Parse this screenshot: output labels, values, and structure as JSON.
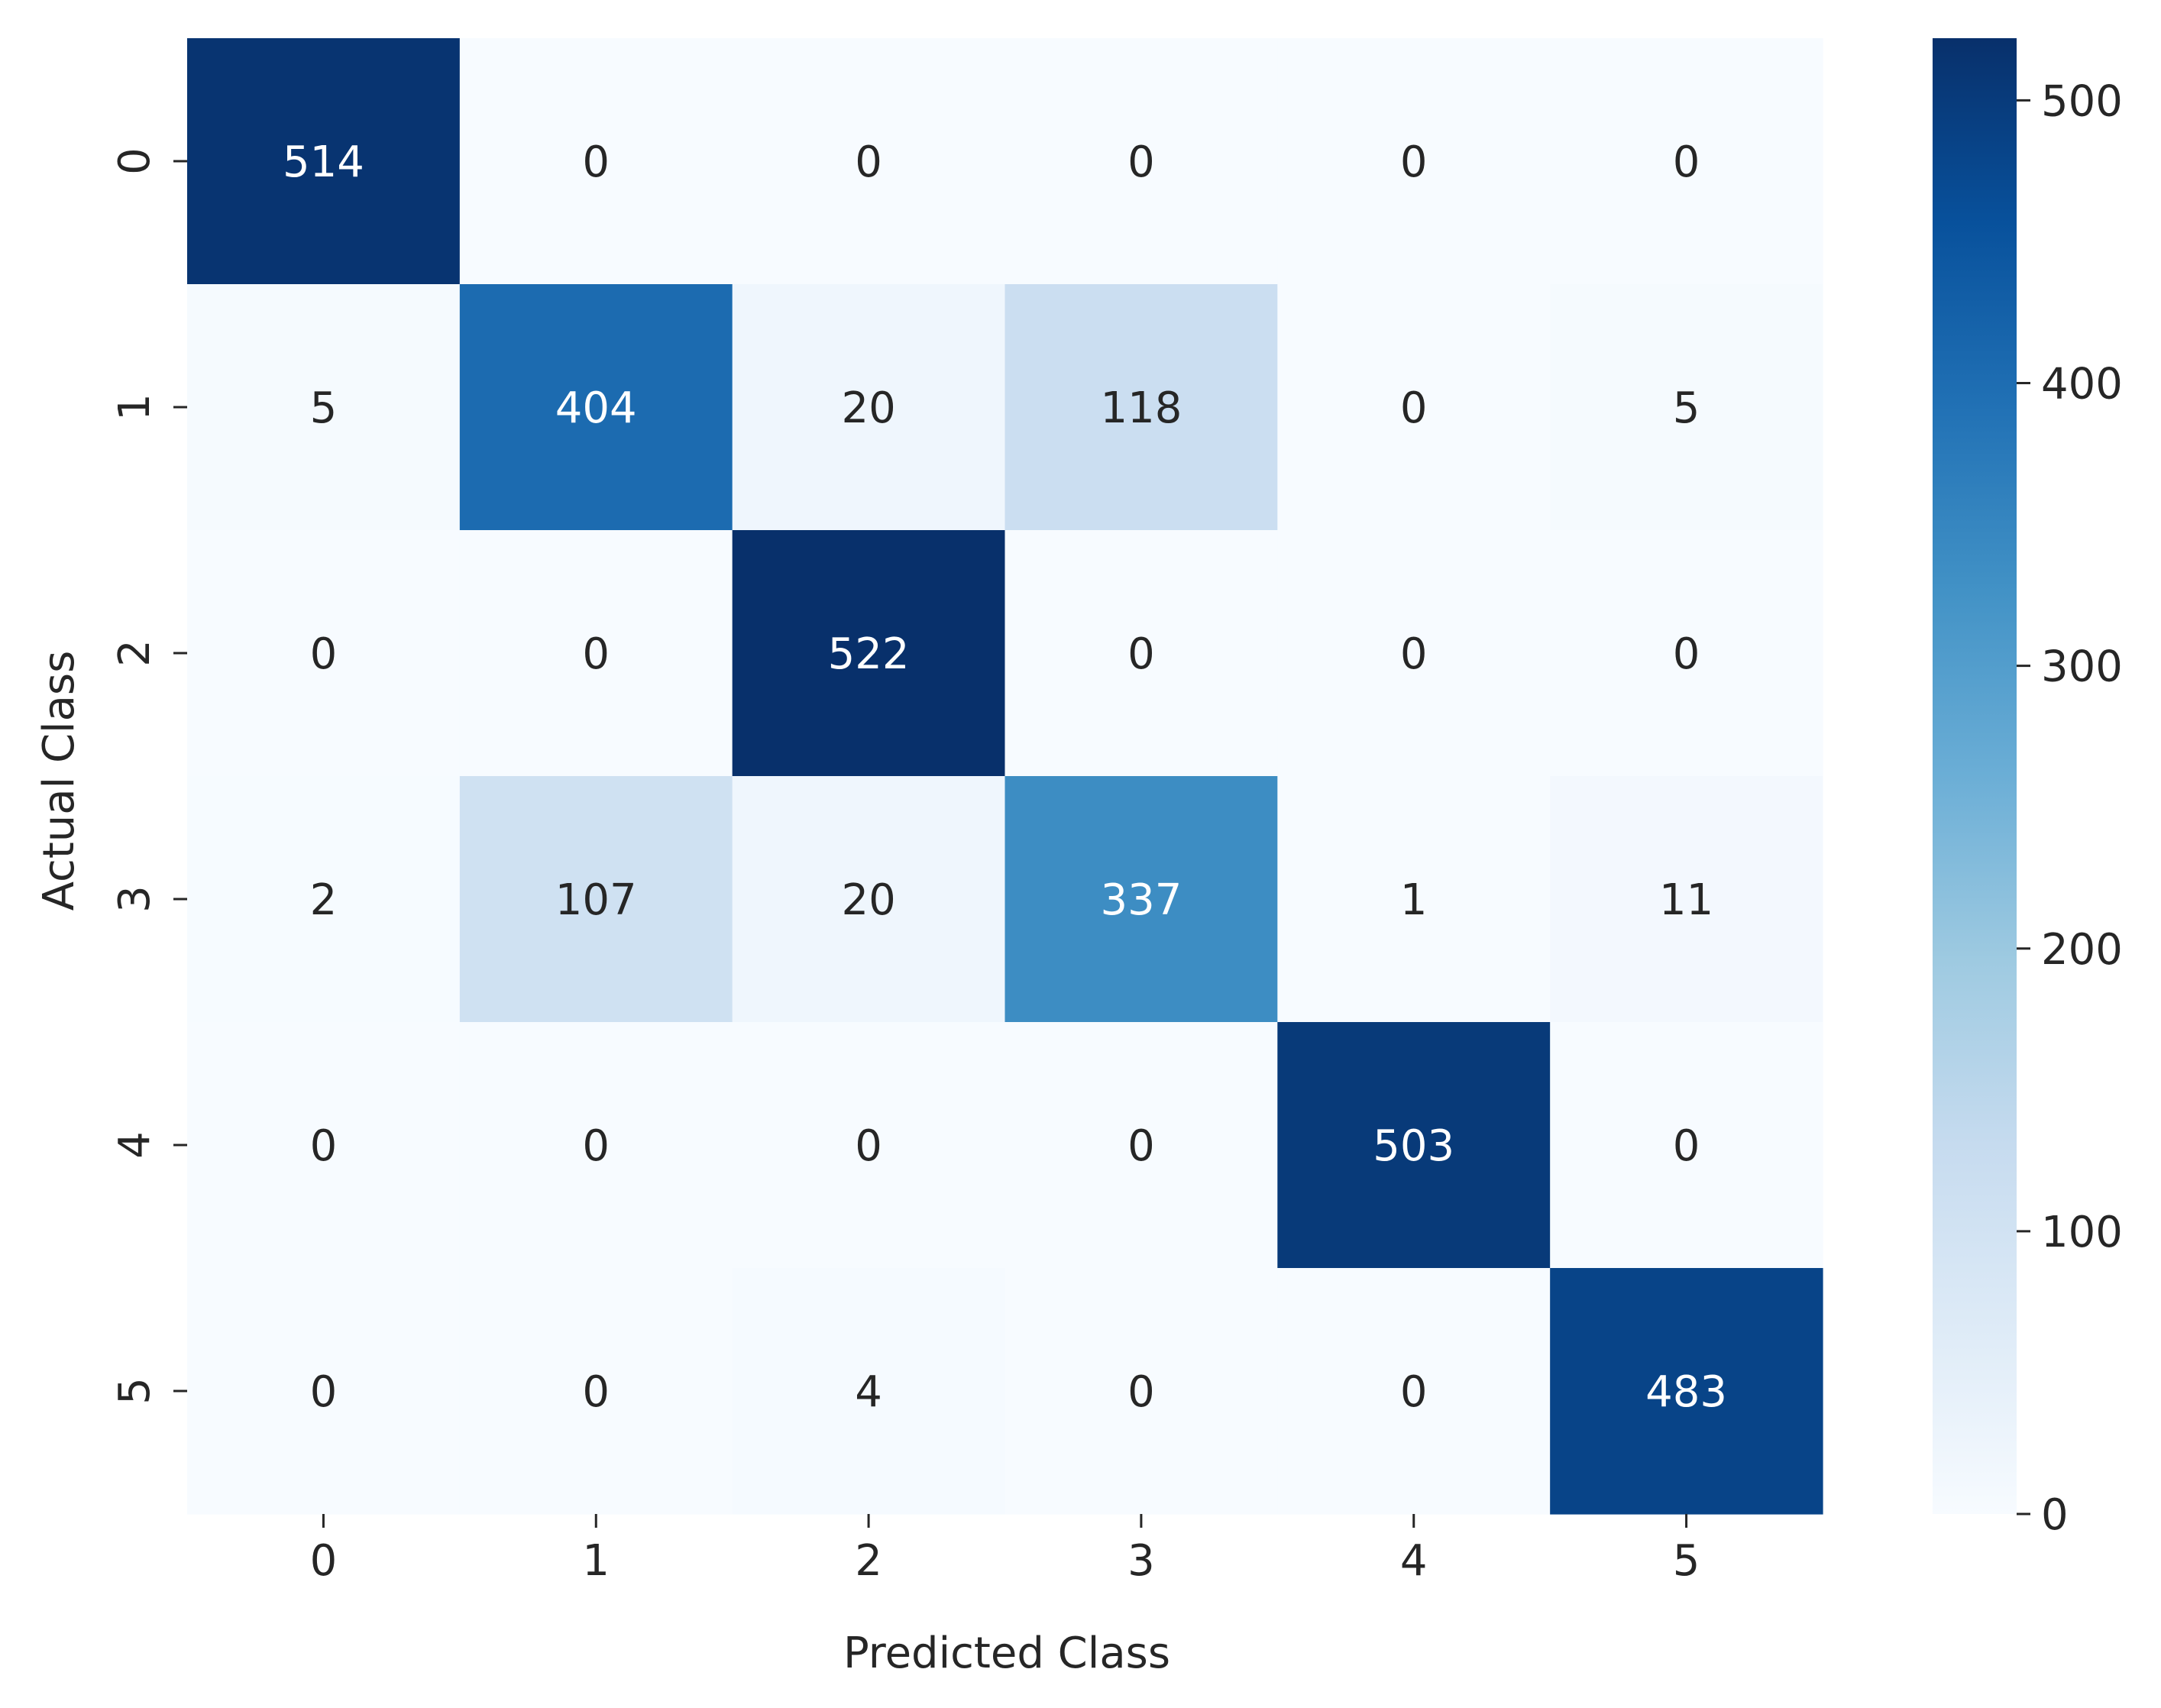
{
  "chart_data": {
    "type": "heatmap",
    "title": "",
    "xlabel": "Predicted Class",
    "ylabel": "Actual Class",
    "x_categories": [
      "0",
      "1",
      "2",
      "3",
      "4",
      "5"
    ],
    "y_categories": [
      "0",
      "1",
      "2",
      "3",
      "4",
      "5"
    ],
    "matrix": [
      [
        514,
        0,
        0,
        0,
        0,
        0
      ],
      [
        5,
        404,
        20,
        118,
        0,
        5
      ],
      [
        0,
        0,
        522,
        0,
        0,
        0
      ],
      [
        2,
        107,
        20,
        337,
        1,
        11
      ],
      [
        0,
        0,
        0,
        0,
        503,
        0
      ],
      [
        0,
        0,
        4,
        0,
        0,
        483
      ]
    ],
    "colormap": "Blues",
    "colorbar": {
      "range": [
        0,
        522
      ],
      "ticks": [
        0,
        100,
        200,
        300,
        400,
        500
      ],
      "tick_labels": [
        "0",
        "100",
        "200",
        "300",
        "400",
        "500"
      ],
      "placement": "right"
    },
    "annotations": true
  }
}
